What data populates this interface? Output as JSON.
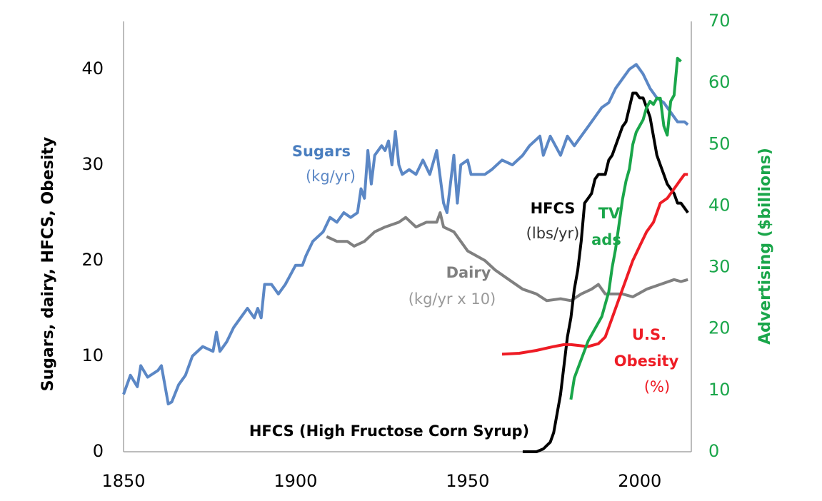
{
  "chart_data": {
    "type": "line",
    "y_label": "Sugars, dairy, HFCS, Obesity",
    "y2_label": "Advertising  ($billions)",
    "xlim": [
      1850,
      2015
    ],
    "xticks": [
      1850,
      1900,
      1950,
      2000
    ],
    "ylim": [
      0,
      45
    ],
    "yticks": [
      0,
      10,
      20,
      30,
      40
    ],
    "y2lim": [
      0,
      70
    ],
    "y2ticks": [
      0,
      10,
      20,
      30,
      40,
      50,
      60,
      70
    ],
    "grid": false,
    "series": [
      {
        "color": "#5b87c5",
        "x": [
          1850,
          1852,
          1854,
          1855,
          1857,
          1860,
          1861,
          1862,
          1863,
          1864,
          1866,
          1868,
          1870,
          1873,
          1876,
          1877,
          1878,
          1880,
          1882,
          1884,
          1886,
          1888,
          1889,
          1890,
          1891,
          1893,
          1895,
          1897,
          1900,
          1902,
          1903,
          1905,
          1908,
          1910,
          1912,
          1914,
          1916,
          1918,
          1919,
          1920,
          1921,
          1922,
          1923,
          1925,
          1926,
          1927,
          1928,
          1929,
          1930,
          1931,
          1933,
          1935,
          1937,
          1939,
          1941,
          1943,
          1944,
          1945,
          1946,
          1947,
          1948,
          1950,
          1951,
          1955,
          1957,
          1960,
          1963,
          1966,
          1968,
          1971,
          1972,
          1974,
          1977,
          1979,
          1981,
          1983,
          1985,
          1987,
          1989,
          1991,
          1993,
          1995,
          1997,
          1999,
          2001,
          2003,
          2005,
          2007,
          2009,
          2011,
          2013,
          2014
        ],
        "values": [
          6,
          8,
          6.8,
          9,
          7.8,
          8.5,
          9,
          7,
          5,
          5.2,
          7,
          8,
          10,
          11,
          10.5,
          12.5,
          10.5,
          11.5,
          13,
          14,
          15,
          14,
          15,
          14,
          17.5,
          17.5,
          16.5,
          17.5,
          19.5,
          19.5,
          20.5,
          22,
          23,
          24.5,
          24,
          25,
          24.5,
          25,
          27.5,
          26.5,
          31.5,
          28,
          31,
          32,
          31.5,
          32.5,
          30,
          33.5,
          30,
          29,
          29.5,
          29,
          30.5,
          29,
          31.5,
          26,
          25,
          28,
          31,
          26,
          30,
          30.5,
          29,
          29,
          29.5,
          30.5,
          30,
          31,
          32,
          33,
          31,
          33,
          31,
          33,
          32,
          33,
          34,
          35,
          36,
          36.5,
          38,
          39,
          40,
          40.5,
          39.5,
          38,
          37,
          36.5,
          35.5,
          34.5,
          34.5,
          34.2
        ]
      },
      {
        "color": "#808080",
        "x": [
          1909,
          1912,
          1915,
          1917,
          1920,
          1923,
          1926,
          1930,
          1932,
          1935,
          1938,
          1941,
          1942,
          1943,
          1946,
          1950,
          1955,
          1958,
          1962,
          1966,
          1970,
          1973,
          1977,
          1980,
          1983,
          1986,
          1988,
          1990,
          1995,
          1998,
          2002,
          2006,
          2010,
          2012,
          2014
        ],
        "values": [
          22.5,
          22,
          22,
          21.5,
          22,
          23,
          23.5,
          24,
          24.5,
          23.5,
          24,
          24,
          25,
          23.5,
          23,
          21,
          20,
          19,
          18,
          17,
          16.5,
          15.8,
          16,
          15.8,
          16.5,
          17,
          17.5,
          16.5,
          16.5,
          16.2,
          17,
          17.5,
          18,
          17.8,
          18
        ]
      },
      {
        "color": "#000000",
        "x": [
          1966,
          1970,
          1972,
          1974,
          1975,
          1976,
          1977,
          1978,
          1979,
          1980,
          1981,
          1982,
          1983,
          1984,
          1985,
          1986,
          1987,
          1988,
          1989,
          1990,
          1991,
          1992,
          1993,
          1994,
          1995,
          1996,
          1997,
          1998,
          1999,
          2000,
          2001,
          2002,
          2003,
          2004,
          2005,
          2006,
          2007,
          2008,
          2009,
          2010,
          2011,
          2012,
          2013,
          2014
        ],
        "values": [
          0,
          0,
          0.3,
          1,
          2,
          4,
          6,
          9,
          12,
          14,
          17,
          19,
          22,
          26,
          26.5,
          27,
          28.5,
          29,
          29,
          29,
          30.5,
          31,
          32,
          33,
          34,
          34.5,
          36,
          37.5,
          37.5,
          37,
          37,
          36,
          35,
          33,
          31,
          30,
          29,
          28,
          27.5,
          27,
          26,
          26,
          25.5,
          25
        ]
      },
      {
        "color": "#ee1c25",
        "x": [
          1960,
          1965,
          1970,
          1975,
          1978,
          1980,
          1985,
          1988,
          1990,
          1992,
          1994,
          1996,
          1998,
          2000,
          2002,
          2004,
          2006,
          2008,
          2010,
          2012,
          2013,
          2014
        ],
        "values": [
          10.2,
          10.3,
          10.6,
          11,
          11.2,
          11.2,
          11,
          11.3,
          12,
          14,
          16,
          18,
          20,
          21.5,
          23,
          24,
          26,
          26.5,
          27.5,
          28.5,
          29,
          29
        ]
      },
      {
        "color": "#1aa64a",
        "axis": "y2",
        "x": [
          1980,
          1981,
          1983,
          1985,
          1987,
          1989,
          1990,
          1991,
          1992,
          1993,
          1994,
          1995,
          1996,
          1997,
          1998,
          1999,
          2000,
          2001,
          2002,
          2003,
          2004,
          2005,
          2006,
          2007,
          2008,
          2009,
          2010,
          2011,
          2012
        ],
        "values": [
          8.5,
          12,
          15,
          18,
          20,
          22,
          24,
          26,
          30,
          33,
          37,
          41,
          44,
          46,
          50,
          52,
          53,
          54,
          56,
          57,
          56.5,
          57.5,
          57.5,
          53,
          51.5,
          57,
          58,
          64,
          63.5
        ]
      }
    ],
    "annotations": [
      "Sugars",
      "(kg/yr)",
      "Dairy",
      "(kg/yr x 10)",
      "HFCS",
      "(lbs/yr)",
      "TV",
      "ads",
      "U.S.",
      "Obesity",
      "(%)",
      "HFCS (High Fructose Corn Syrup)"
    ]
  }
}
